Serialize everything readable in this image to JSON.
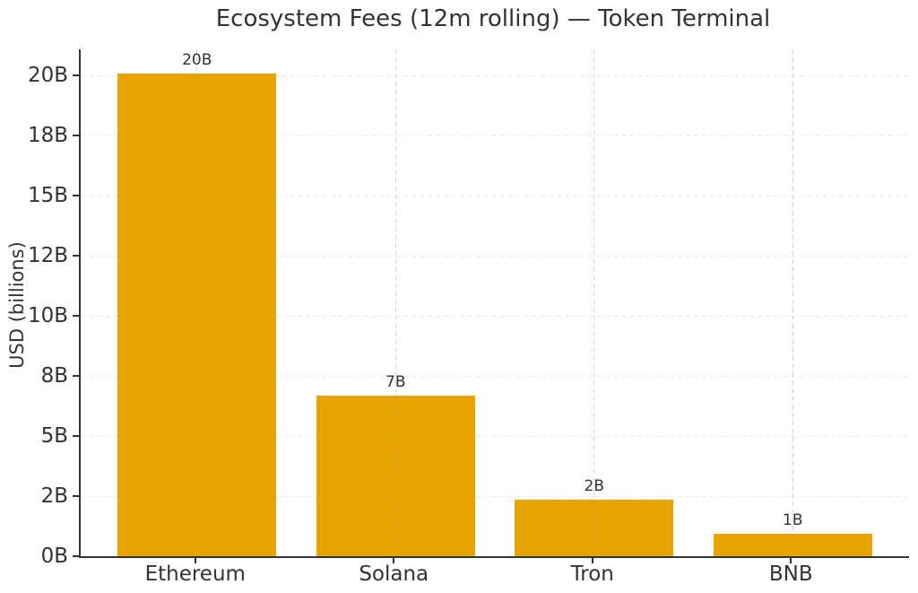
{
  "chart_data": {
    "type": "bar",
    "title": "Ecosystem Fees (12m rolling) — Token Terminal",
    "xlabel": "",
    "ylabel": "USD (billions)",
    "categories": [
      "Ethereum",
      "Solana",
      "Tron",
      "BNB"
    ],
    "values": [
      20.1,
      6.7,
      2.35,
      0.95
    ],
    "bar_labels": [
      "20B",
      "7B",
      "2B",
      "1B"
    ],
    "yticks": [
      0,
      2.5,
      5,
      7.5,
      10,
      12.5,
      15,
      17.5,
      20
    ],
    "ytick_labels": [
      "0B",
      "2B",
      "5B",
      "8B",
      "10B",
      "12B",
      "15B",
      "18B",
      "20B"
    ],
    "ylim": [
      0,
      21.1
    ],
    "grid": true,
    "legend": "none",
    "bar_color": "#E8A400",
    "text_color": "#333333",
    "axis_color": "#333333",
    "h_grid_color": "#e9e9e9",
    "v_grid_color": "rgba(150,150,150,0.4)",
    "background_color": "#ffffff"
  }
}
